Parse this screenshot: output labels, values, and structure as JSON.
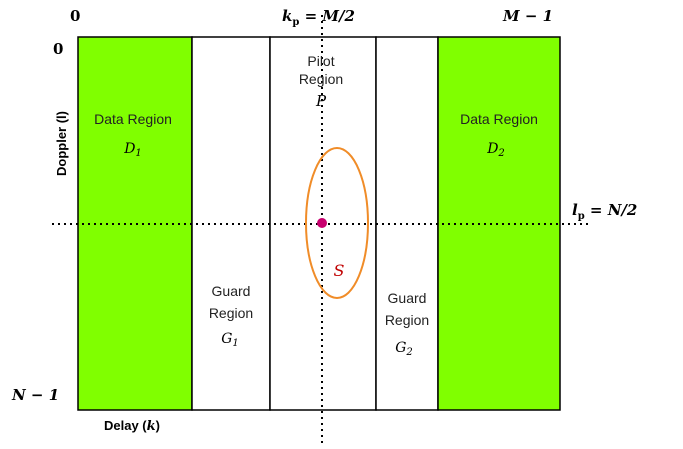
{
  "axes": {
    "top_left": "0",
    "top_pilot": "k",
    "top_pilot_sub": "p",
    "top_pilot_eq": " = M/2",
    "top_right": "M − 1",
    "left_top": "0",
    "left_bottom": "N − 1",
    "right_pilot": "l",
    "right_pilot_sub": "p",
    "right_pilot_eq": " = N/2",
    "vertical_label": "Doppler (l)",
    "horizontal_label_text": "Delay (",
    "horizontal_label_var": "k",
    "horizontal_label_close": ")"
  },
  "regions": {
    "data1": {
      "line1": "Data Region",
      "symbol": "D",
      "sub": "1"
    },
    "data2": {
      "line1": "Data Region",
      "symbol": "D",
      "sub": "2"
    },
    "guard1": {
      "line1": "Guard",
      "line2": "Region",
      "symbol": "G",
      "sub": "1"
    },
    "guard2": {
      "line1": "Guard",
      "line2": "Region",
      "symbol": "G",
      "sub": "2"
    },
    "pilot": {
      "line1": "Pilot",
      "line2": "Region",
      "symbol": "P"
    },
    "spread": {
      "symbol": "S"
    }
  },
  "colors": {
    "data_region": "#80FF00",
    "guard_region": "#ffffff",
    "outline": "#000000",
    "ellipse": "#F08C28",
    "pilot_dot": "#C8006E",
    "spread_symbol": "#C00000"
  }
}
